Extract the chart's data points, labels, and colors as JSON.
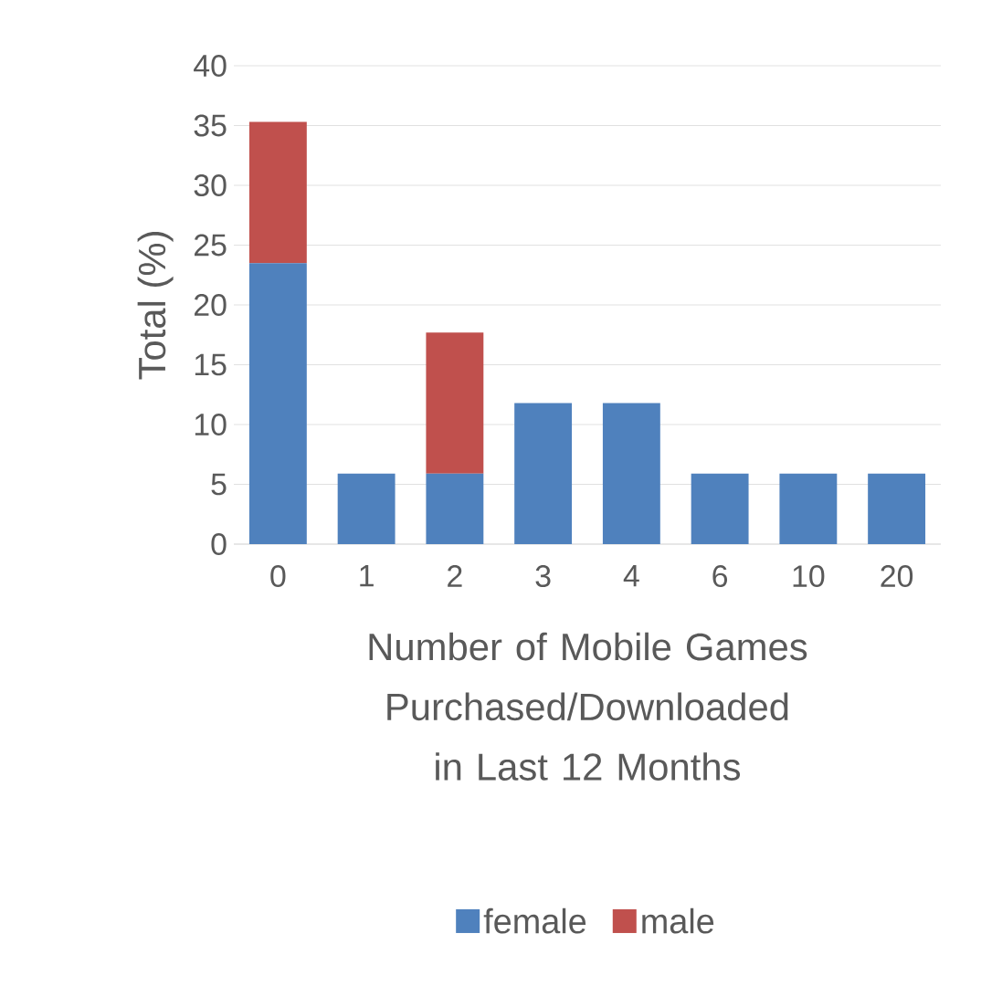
{
  "chart_data": {
    "type": "bar",
    "stacked": true,
    "xlabel": "Number of Mobile Games Purchased/Downloaded in Last 12 Months",
    "ylabel": "Total (%)",
    "categories": [
      "0",
      "1",
      "2",
      "3",
      "4",
      "6",
      "10",
      "20"
    ],
    "series": [
      {
        "name": "female",
        "color": "#4f81bd",
        "values": [
          23.5,
          5.9,
          5.9,
          11.8,
          11.8,
          5.9,
          5.9,
          5.9
        ]
      },
      {
        "name": "male",
        "color": "#c0504d",
        "values": [
          11.8,
          null,
          11.8,
          null,
          null,
          null,
          null,
          null
        ]
      }
    ],
    "ylim": [
      0,
      40
    ],
    "yticks": [
      0,
      5,
      10,
      15,
      20,
      25,
      30,
      35,
      40
    ],
    "grid": "y",
    "legend": "bottom"
  }
}
